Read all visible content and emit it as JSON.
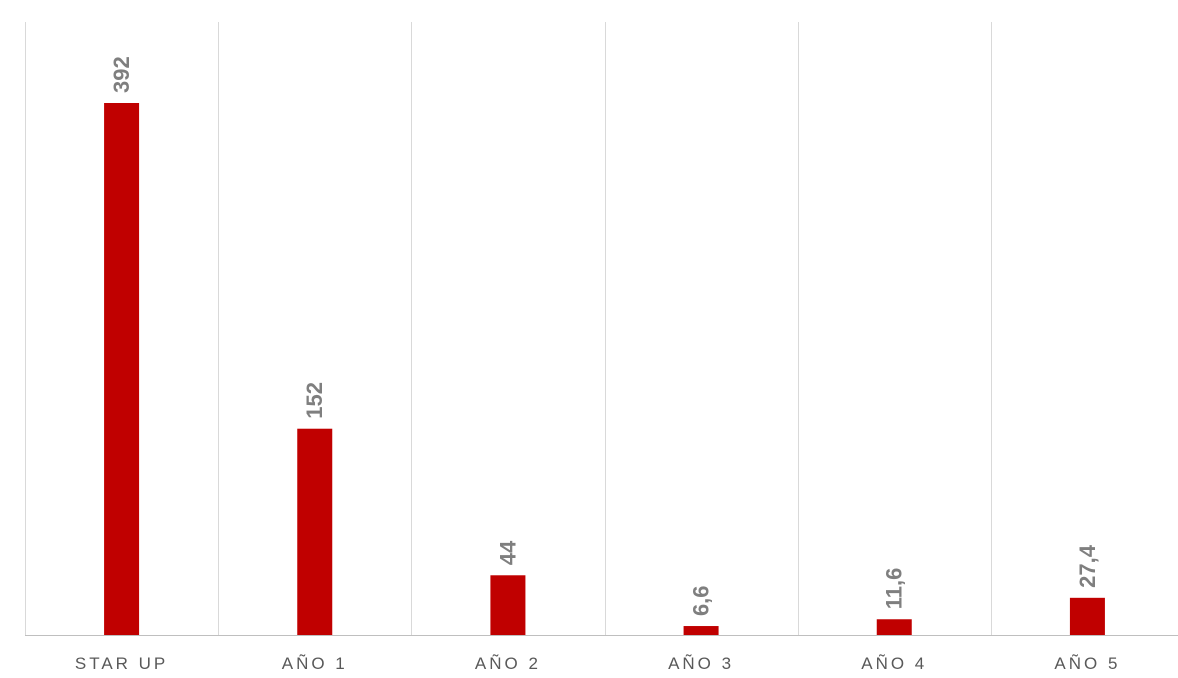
{
  "chart_data": {
    "type": "bar",
    "categories": [
      "STAR UP",
      "AÑO 1",
      "AÑO 2",
      "AÑO 3",
      "AÑO 4",
      "AÑO 5"
    ],
    "values": [
      392,
      152,
      44,
      6.6,
      11.6,
      27.4
    ],
    "data_labels": [
      "392",
      "152",
      "44",
      "6,6",
      "11,6",
      "27,4"
    ],
    "ylim": [
      0,
      392
    ],
    "grid": "vertical-separators",
    "legend": "none",
    "colors": {
      "bar": "#c00000",
      "grid": "#d9d9d9",
      "axis": "#bfbfbf",
      "tick_text": "#595959",
      "label_text": "#7f7f7f"
    }
  }
}
